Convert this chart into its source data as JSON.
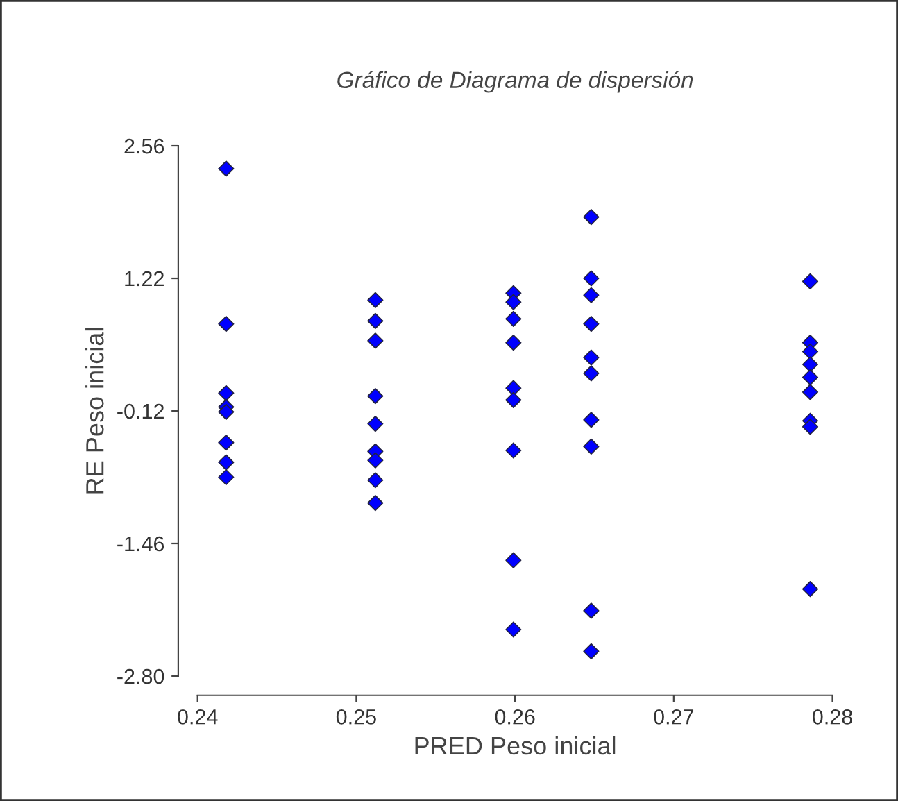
{
  "chart_data": {
    "type": "scatter",
    "title": "Gráfico de Diagrama de dispersión",
    "xlabel": "PRED Peso inicial",
    "ylabel": "RE Peso inicial",
    "x": [
      0.2418,
      0.2418,
      0.2418,
      0.2418,
      0.2418,
      0.2418,
      0.2418,
      0.2418,
      0.2512,
      0.2512,
      0.2512,
      0.2512,
      0.2512,
      0.2512,
      0.2512,
      0.2512,
      0.2512,
      0.2599,
      0.2599,
      0.2599,
      0.2599,
      0.2599,
      0.2599,
      0.2599,
      0.2599,
      0.2599,
      0.2648,
      0.2648,
      0.2648,
      0.2648,
      0.2648,
      0.2648,
      0.2648,
      0.2648,
      0.2648,
      0.2648,
      0.2786,
      0.2786,
      0.2786,
      0.2786,
      0.2786,
      0.2786,
      0.2786,
      0.2786,
      0.2786
    ],
    "series": [
      {
        "color": "#0000ff",
        "values": [
          2.33,
          0.76,
          0.06,
          -0.08,
          -0.13,
          -0.44,
          -0.64,
          -0.79,
          1.0,
          0.79,
          0.59,
          0.03,
          -0.25,
          -0.53,
          -0.62,
          -0.82,
          -1.05,
          1.07,
          0.98,
          0.81,
          0.57,
          0.11,
          -0.01,
          -0.52,
          -1.63,
          -2.33,
          1.84,
          1.22,
          1.05,
          0.76,
          0.42,
          0.26,
          -0.21,
          -0.48,
          -2.14,
          -2.55,
          1.19,
          0.57,
          0.48,
          0.35,
          0.22,
          0.07,
          -0.22,
          -0.28,
          -1.92
        ]
      }
    ],
    "xlim": [
      0.24,
      0.28
    ],
    "xticks": [
      0.24,
      0.25,
      0.26,
      0.27,
      0.28
    ],
    "ylim": [
      -2.8,
      2.56
    ],
    "yticks": [
      {
        "value": 2.56,
        "label": "2.56"
      },
      {
        "value": 1.22,
        "label": "1.22"
      },
      {
        "value": -0.12,
        "label": "-0.12"
      },
      {
        "value": -1.46,
        "label": "-1.46"
      },
      {
        "value": -2.8,
        "label": "-2.80"
      }
    ],
    "marker": "diamond",
    "grid": false,
    "legend": false
  }
}
